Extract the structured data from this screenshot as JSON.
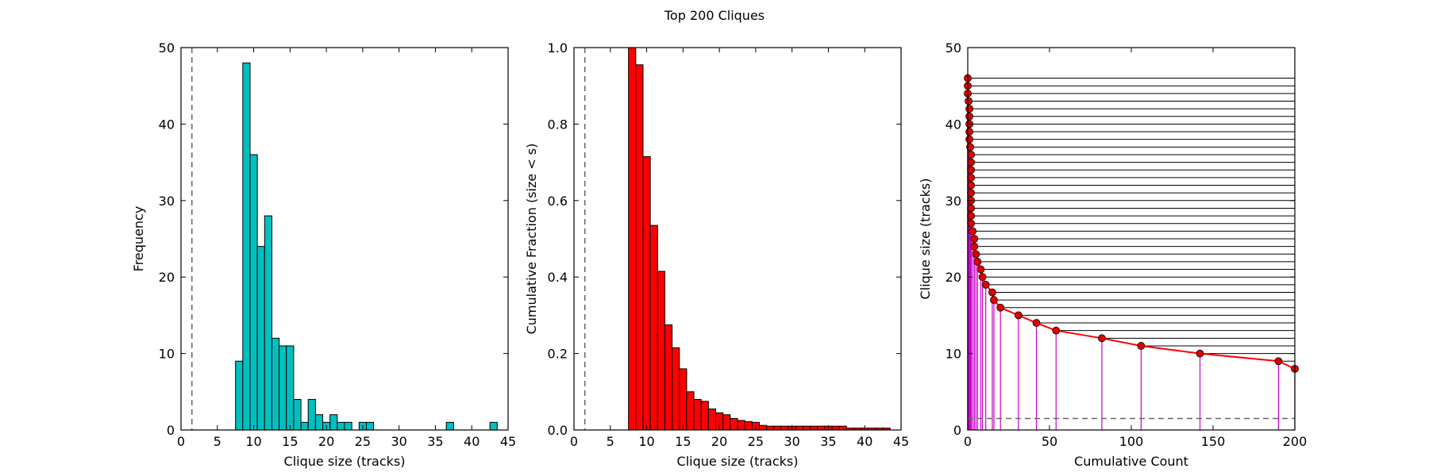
{
  "figure": {
    "title": "Top 200 Cliques"
  },
  "chart_data": [
    {
      "type": "bar",
      "xlabel": "Clique size (tracks)",
      "ylabel": "Frequency",
      "xlim": [
        0,
        45
      ],
      "ylim": [
        0,
        50
      ],
      "xticks": [
        0,
        5,
        10,
        15,
        20,
        25,
        30,
        35,
        40,
        45
      ],
      "yticks": [
        0,
        10,
        20,
        30,
        40,
        50
      ],
      "bar_color": "#00bfbf",
      "bin_width": 1,
      "bins": [
        {
          "x": 8,
          "value": 9
        },
        {
          "x": 9,
          "value": 48
        },
        {
          "x": 10,
          "value": 36
        },
        {
          "x": 11,
          "value": 24
        },
        {
          "x": 12,
          "value": 28
        },
        {
          "x": 13,
          "value": 12
        },
        {
          "x": 14,
          "value": 11
        },
        {
          "x": 15,
          "value": 11
        },
        {
          "x": 16,
          "value": 4
        },
        {
          "x": 17,
          "value": 1
        },
        {
          "x": 18,
          "value": 4
        },
        {
          "x": 19,
          "value": 2
        },
        {
          "x": 20,
          "value": 1
        },
        {
          "x": 21,
          "value": 2
        },
        {
          "x": 22,
          "value": 1
        },
        {
          "x": 23,
          "value": 1
        },
        {
          "x": 25,
          "value": 1
        },
        {
          "x": 26,
          "value": 1
        },
        {
          "x": 37,
          "value": 1
        },
        {
          "x": 43,
          "value": 1
        }
      ],
      "threshold_x": 1.5,
      "grid": false
    },
    {
      "type": "bar",
      "xlabel": "Clique size (tracks)",
      "ylabel": "Cumulative Fraction (size < s)",
      "xlim": [
        0,
        45
      ],
      "ylim": [
        0,
        1.0
      ],
      "xticks": [
        0,
        5,
        10,
        15,
        20,
        25,
        30,
        35,
        40,
        45
      ],
      "yticks": [
        0.0,
        0.2,
        0.4,
        0.6,
        0.8,
        1.0
      ],
      "bar_color": "#ff0000",
      "bin_width": 1,
      "bins": [
        {
          "x": 8,
          "value": 1.0
        },
        {
          "x": 9,
          "value": 0.955
        },
        {
          "x": 10,
          "value": 0.715
        },
        {
          "x": 11,
          "value": 0.535
        },
        {
          "x": 12,
          "value": 0.415
        },
        {
          "x": 13,
          "value": 0.275
        },
        {
          "x": 14,
          "value": 0.215
        },
        {
          "x": 15,
          "value": 0.16
        },
        {
          "x": 16,
          "value": 0.1
        },
        {
          "x": 17,
          "value": 0.08
        },
        {
          "x": 18,
          "value": 0.075
        },
        {
          "x": 19,
          "value": 0.055
        },
        {
          "x": 20,
          "value": 0.045
        },
        {
          "x": 21,
          "value": 0.04
        },
        {
          "x": 22,
          "value": 0.03
        },
        {
          "x": 23,
          "value": 0.025
        },
        {
          "x": 24,
          "value": 0.022
        },
        {
          "x": 25,
          "value": 0.02
        },
        {
          "x": 26,
          "value": 0.012
        },
        {
          "x": 27,
          "value": 0.01
        },
        {
          "x": 28,
          "value": 0.01
        },
        {
          "x": 29,
          "value": 0.01
        },
        {
          "x": 30,
          "value": 0.01
        },
        {
          "x": 31,
          "value": 0.01
        },
        {
          "x": 32,
          "value": 0.01
        },
        {
          "x": 33,
          "value": 0.01
        },
        {
          "x": 34,
          "value": 0.01
        },
        {
          "x": 35,
          "value": 0.01
        },
        {
          "x": 36,
          "value": 0.01
        },
        {
          "x": 37,
          "value": 0.01
        },
        {
          "x": 38,
          "value": 0.005
        },
        {
          "x": 39,
          "value": 0.005
        },
        {
          "x": 40,
          "value": 0.005
        },
        {
          "x": 41,
          "value": 0.005
        },
        {
          "x": 42,
          "value": 0.005
        },
        {
          "x": 43,
          "value": 0.005
        }
      ],
      "threshold_x": 1.5,
      "grid": false
    },
    {
      "type": "line",
      "xlabel": "Cumulative Count",
      "ylabel": "Clique size (tracks)",
      "xlim": [
        0,
        200
      ],
      "ylim": [
        0,
        50
      ],
      "xticks": [
        0,
        50,
        100,
        150,
        200
      ],
      "yticks": [
        0,
        10,
        20,
        30,
        40,
        50
      ],
      "line_color": "#ff0000",
      "marker_color": "#e00000",
      "stem_color": "#cc00cc",
      "hline_color": "#000000",
      "threshold_y": 1.5,
      "grid": false,
      "points": [
        {
          "x": 0,
          "y": 46
        },
        {
          "x": 0,
          "y": 45
        },
        {
          "x": 0,
          "y": 44
        },
        {
          "x": 0.5,
          "y": 43
        },
        {
          "x": 1,
          "y": 42
        },
        {
          "x": 1,
          "y": 41
        },
        {
          "x": 1,
          "y": 40
        },
        {
          "x": 1,
          "y": 39
        },
        {
          "x": 1,
          "y": 38
        },
        {
          "x": 1.5,
          "y": 37
        },
        {
          "x": 2,
          "y": 36
        },
        {
          "x": 2,
          "y": 35
        },
        {
          "x": 2,
          "y": 34
        },
        {
          "x": 2,
          "y": 33
        },
        {
          "x": 2,
          "y": 32
        },
        {
          "x": 2,
          "y": 31
        },
        {
          "x": 2,
          "y": 30
        },
        {
          "x": 2,
          "y": 29
        },
        {
          "x": 2,
          "y": 28
        },
        {
          "x": 2,
          "y": 27
        },
        {
          "x": 3,
          "y": 26
        },
        {
          "x": 4,
          "y": 25
        },
        {
          "x": 4,
          "y": 24
        },
        {
          "x": 5,
          "y": 23
        },
        {
          "x": 6,
          "y": 22
        },
        {
          "x": 8,
          "y": 21
        },
        {
          "x": 9,
          "y": 20
        },
        {
          "x": 11,
          "y": 19
        },
        {
          "x": 15,
          "y": 18
        },
        {
          "x": 16,
          "y": 17
        },
        {
          "x": 20,
          "y": 16
        },
        {
          "x": 31,
          "y": 15
        },
        {
          "x": 42,
          "y": 14
        },
        {
          "x": 54,
          "y": 13
        },
        {
          "x": 82,
          "y": 12
        },
        {
          "x": 106,
          "y": 11
        },
        {
          "x": 142,
          "y": 10
        },
        {
          "x": 190,
          "y": 9
        },
        {
          "x": 200,
          "y": 8
        }
      ]
    }
  ]
}
